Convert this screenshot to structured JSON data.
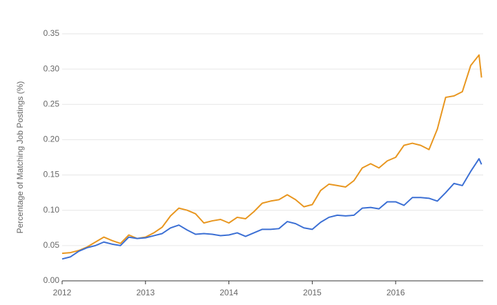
{
  "chart_data": {
    "type": "line",
    "y_label": "Percentage of Matching Job Postings (%)",
    "x": [
      2012.0,
      2012.1,
      2012.2,
      2012.3,
      2012.4,
      2012.5,
      2012.6,
      2012.7,
      2012.8,
      2012.9,
      2013.0,
      2013.1,
      2013.2,
      2013.3,
      2013.4,
      2013.5,
      2013.6,
      2013.7,
      2013.8,
      2013.9,
      2014.0,
      2014.1,
      2014.2,
      2014.3,
      2014.4,
      2014.5,
      2014.6,
      2014.7,
      2014.8,
      2014.9,
      2015.0,
      2015.1,
      2015.2,
      2015.3,
      2015.4,
      2015.5,
      2015.6,
      2015.7,
      2015.8,
      2015.9,
      2016.0,
      2016.1,
      2016.2,
      2016.3,
      2016.4,
      2016.5,
      2016.6,
      2016.7,
      2016.8,
      2016.9,
      2017.0,
      2017.03
    ],
    "series": [
      {
        "color": "#e8961f",
        "values": [
          0.039,
          0.04,
          0.043,
          0.048,
          0.055,
          0.062,
          0.057,
          0.053,
          0.065,
          0.06,
          0.062,
          0.068,
          0.076,
          0.092,
          0.103,
          0.1,
          0.095,
          0.082,
          0.085,
          0.087,
          0.082,
          0.09,
          0.088,
          0.098,
          0.11,
          0.113,
          0.115,
          0.122,
          0.115,
          0.105,
          0.108,
          0.128,
          0.137,
          0.135,
          0.133,
          0.142,
          0.16,
          0.166,
          0.16,
          0.17,
          0.175,
          0.192,
          0.195,
          0.192,
          0.186,
          0.215,
          0.26,
          0.262,
          0.268,
          0.305,
          0.32,
          0.288
        ]
      },
      {
        "color": "#3b6fd4",
        "values": [
          0.031,
          0.034,
          0.042,
          0.047,
          0.05,
          0.055,
          0.052,
          0.05,
          0.062,
          0.06,
          0.061,
          0.064,
          0.067,
          0.075,
          0.079,
          0.072,
          0.066,
          0.067,
          0.066,
          0.064,
          0.065,
          0.068,
          0.063,
          0.068,
          0.073,
          0.073,
          0.074,
          0.084,
          0.081,
          0.075,
          0.073,
          0.083,
          0.09,
          0.093,
          0.092,
          0.093,
          0.103,
          0.104,
          0.102,
          0.112,
          0.112,
          0.107,
          0.118,
          0.118,
          0.117,
          0.113,
          0.125,
          0.138,
          0.135,
          0.155,
          0.173,
          0.165
        ]
      }
    ],
    "xlim": [
      2012,
      2017.05
    ],
    "xticks": [
      2012,
      2013,
      2014,
      2015,
      2016
    ],
    "ylim": [
      0,
      0.35
    ],
    "yticks": [
      {
        "value": 0,
        "label": "0.00"
      },
      {
        "value": 0.05,
        "label": "0.05"
      },
      {
        "value": 0.1,
        "label": "0.10"
      },
      {
        "value": 0.15,
        "label": "0.15"
      },
      {
        "value": 0.2,
        "label": "0.20"
      },
      {
        "value": 0.25,
        "label": "0.25"
      },
      {
        "value": 0.3,
        "label": "0.30"
      },
      {
        "value": 0.35,
        "label": "0.35"
      }
    ],
    "grid": true
  }
}
